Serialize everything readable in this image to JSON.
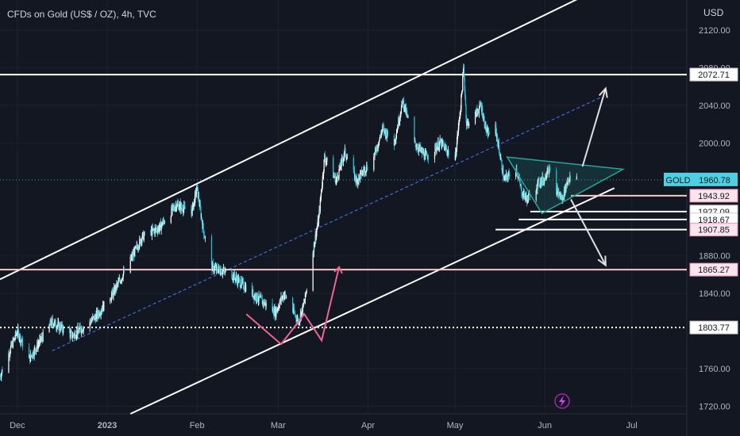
{
  "header": {
    "title": "CFDs on Gold (US$ / OZ), 4h, TVC",
    "currency": "USD"
  },
  "colors": {
    "background": "#131722",
    "candle_up": "#ffffff",
    "candle_down": "#26c6da",
    "channel_line": "#ffffff",
    "midline": "#3f6ad8",
    "horizontal_level": "#ffffff",
    "pink_level": "#f8c8c8",
    "pattern_pink": "#f06292",
    "triangle": "#26a69a",
    "arrow": "#e0e0e0",
    "last_price_badge": "#4dd0e1",
    "dotted_level": "#ffffff",
    "lightning": "#9c27b0"
  },
  "chart_data": {
    "type": "candlestick",
    "title": "CFDs on Gold (US$ / OZ), 4h, TVC",
    "symbol": "GOLD",
    "interval": "4h",
    "x_axis_labels": [
      "Dec",
      "2023",
      "Feb",
      "Mar",
      "Apr",
      "May",
      "Jun",
      "Jul"
    ],
    "x_range": [
      "2022-11-25",
      "2023-07-20"
    ],
    "y_axis_ticks": [
      2120.0,
      2080.0,
      2040.0,
      2000.0,
      1880.0,
      1840.0,
      1760.0,
      1720.0
    ],
    "y_range": [
      1712,
      2152
    ],
    "last_price": {
      "label": "GOLD",
      "value": 1960.78
    },
    "price_labels": [
      {
        "value": 2072.71,
        "style": "white"
      },
      {
        "value": 1943.92,
        "style": "pink"
      },
      {
        "value": 1927.09,
        "style": "white"
      },
      {
        "value": 1918.67,
        "style": "white"
      },
      {
        "value": 1907.85,
        "style": "pink"
      },
      {
        "value": 1865.27,
        "style": "pink"
      },
      {
        "value": 1803.77,
        "style": "white"
      }
    ],
    "price_path": [
      [
        "2022-11-25",
        1752
      ],
      [
        "2022-12-01",
        1800
      ],
      [
        "2022-12-05",
        1770
      ],
      [
        "2022-12-13",
        1810
      ],
      [
        "2022-12-20",
        1795
      ],
      [
        "2022-12-28",
        1815
      ],
      [
        "2023-01-03",
        1840
      ],
      [
        "2023-01-09",
        1875
      ],
      [
        "2023-01-13",
        1900
      ],
      [
        "2023-01-19",
        1910
      ],
      [
        "2023-01-25",
        1935
      ],
      [
        "2023-01-30",
        1925
      ],
      [
        "2023-02-01",
        1952
      ],
      [
        "2023-02-03",
        1910
      ],
      [
        "2023-02-06",
        1868
      ],
      [
        "2023-02-13",
        1860
      ],
      [
        "2023-02-20",
        1840
      ],
      [
        "2023-02-28",
        1820
      ],
      [
        "2023-03-03",
        1840
      ],
      [
        "2023-03-08",
        1810
      ],
      [
        "2023-03-10",
        1830
      ],
      [
        "2023-03-13",
        1885
      ],
      [
        "2023-03-15",
        1920
      ],
      [
        "2023-03-17",
        1985
      ],
      [
        "2023-03-21",
        1960
      ],
      [
        "2023-03-24",
        1990
      ],
      [
        "2023-03-28",
        1960
      ],
      [
        "2023-04-03",
        1985
      ],
      [
        "2023-04-06",
        2015
      ],
      [
        "2023-04-10",
        2000
      ],
      [
        "2023-04-13",
        2045
      ],
      [
        "2023-04-17",
        2000
      ],
      [
        "2023-04-21",
        1985
      ],
      [
        "2023-04-26",
        2000
      ],
      [
        "2023-05-01",
        1982
      ],
      [
        "2023-05-03",
        2040
      ],
      [
        "2023-05-04",
        2080
      ],
      [
        "2023-05-05",
        2020
      ],
      [
        "2023-05-08",
        2030
      ],
      [
        "2023-05-10",
        2040
      ],
      [
        "2023-05-12",
        2010
      ],
      [
        "2023-05-15",
        2015
      ],
      [
        "2023-05-18",
        1960
      ],
      [
        "2023-05-22",
        1975
      ],
      [
        "2023-05-24",
        1948
      ],
      [
        "2023-05-26",
        1940
      ],
      [
        "2023-05-30",
        1958
      ],
      [
        "2023-06-01",
        1962
      ],
      [
        "2023-06-02",
        1975
      ],
      [
        "2023-06-05",
        1950
      ],
      [
        "2023-06-07",
        1940
      ],
      [
        "2023-06-09",
        1962
      ],
      [
        "2023-06-12",
        1960.78
      ]
    ],
    "drawings": {
      "channel_upper": [
        [
          "2022-11-25",
          1855
        ],
        [
          "2023-06-25",
          2172
        ]
      ],
      "channel_lower": [
        [
          "2023-01-09",
          1712
        ],
        [
          "2023-06-25",
          1952
        ]
      ],
      "channel_midline": [
        [
          "2022-12-13",
          1779
        ],
        [
          "2023-06-20",
          2048
        ]
      ],
      "horizontal_lines": [
        {
          "value": 2072.71,
          "from": "2022-11-25",
          "color": "white"
        },
        {
          "value": 1943.92,
          "from": "2023-06-10",
          "color": "pink"
        },
        {
          "value": 1927.09,
          "from": "2023-05-27",
          "color": "white"
        },
        {
          "value": 1918.67,
          "from": "2023-05-23",
          "color": "white"
        },
        {
          "value": 1907.85,
          "from": "2023-05-15",
          "color": "white"
        },
        {
          "value": 1865.27,
          "from": "2022-11-25",
          "color": "pink"
        }
      ],
      "dotted_line": {
        "value": 1803.77,
        "from": "2022-11-25"
      },
      "double_bottom": [
        [
          "2023-02-18",
          1818
        ],
        [
          "2023-03-02",
          1786
        ],
        [
          "2023-03-10",
          1818
        ],
        [
          "2023-03-16",
          1790
        ],
        [
          "2023-03-22",
          1868
        ]
      ],
      "triangle": [
        [
          "2023-05-19",
          1985
        ],
        [
          "2023-06-28",
          1972
        ],
        [
          "2023-05-31",
          1925
        ]
      ],
      "arrow_up": [
        [
          "2023-06-14",
          1975
        ],
        [
          "2023-06-22",
          2058
        ]
      ],
      "arrow_down": [
        [
          "2023-06-10",
          1940
        ],
        [
          "2023-06-22",
          1870
        ]
      ]
    }
  }
}
